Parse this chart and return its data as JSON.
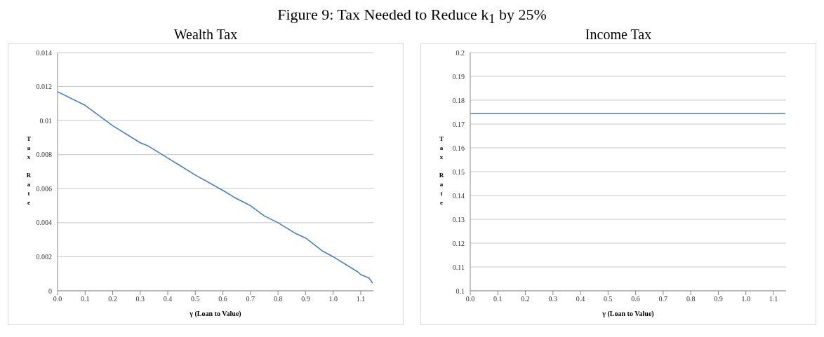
{
  "chart_data": [
    {
      "type": "line",
      "title": "Figure 9: Tax Needed to Reduce k$_{1}$ by 25%",
      "subtitle": "Wealth Tax",
      "xlabel": "γ (Loan to Value)",
      "ylabel": "Tax Rate",
      "grid": "y",
      "legend": false,
      "marker": "none",
      "line_style": "solid",
      "x": [
        0,
        0.1,
        0.2,
        0.3,
        0.33,
        0.4,
        0.5,
        0.6,
        0.64,
        0.7,
        0.75,
        0.8,
        0.86,
        0.9,
        0.96,
        1.0,
        1.09,
        1.1,
        1.13,
        1.143
      ],
      "series": [
        {
          "color": "#4a7ebb",
          "values": [
            0.0117,
            0.0109,
            0.0097,
            0.0087,
            0.0085,
            0.0078,
            0.0068,
            0.0059,
            0.0055,
            0.005,
            0.0044,
            0.004,
            0.0034,
            0.0031,
            0.00235,
            0.002,
            0.0011,
            0.00095,
            0.00075,
            0.00045
          ]
        }
      ],
      "xlim": [
        0,
        1.146
      ],
      "xticks": [
        {
          "value": 0,
          "label": "0.0"
        },
        {
          "value": 0.1,
          "label": "0.1"
        },
        {
          "value": 0.2,
          "label": "0.2"
        },
        {
          "value": 0.3,
          "label": "0.3"
        },
        {
          "value": 0.4,
          "label": "0.4"
        },
        {
          "value": 0.5,
          "label": "0.5"
        },
        {
          "value": 0.6,
          "label": "0.6"
        },
        {
          "value": 0.7,
          "label": "0.7"
        },
        {
          "value": 0.8,
          "label": "0.8"
        },
        {
          "value": 0.9,
          "label": "0.9"
        },
        {
          "value": 1,
          "label": "1.0"
        },
        {
          "value": 1.1,
          "label": "1.1"
        }
      ],
      "ylim": [
        0,
        0.014
      ],
      "yticks": [
        0,
        0.002,
        0.004,
        0.006,
        0.008,
        0.01,
        0.012,
        0.014
      ]
    },
    {
      "type": "line",
      "subtitle": "Income Tax",
      "xlabel": "γ (Loan to Value)",
      "ylabel": "Tax Rate",
      "grid": "y",
      "legend": false,
      "marker": "none",
      "line_style": "solid",
      "x": [
        0,
        1.143
      ],
      "series": [
        {
          "color": "#4a7ebb",
          "values": [
            0.1745,
            0.1745
          ]
        }
      ],
      "xlim": [
        0,
        1.146
      ],
      "xticks": [
        {
          "value": 0,
          "label": "0.0"
        },
        {
          "value": 0.1,
          "label": "0.1"
        },
        {
          "value": 0.2,
          "label": "0.2"
        },
        {
          "value": 0.3,
          "label": "0.3"
        },
        {
          "value": 0.4,
          "label": "0.4"
        },
        {
          "value": 0.5,
          "label": "0.5"
        },
        {
          "value": 0.6,
          "label": "0.6"
        },
        {
          "value": 0.7,
          "label": "0.7"
        },
        {
          "value": 0.8,
          "label": "0.8"
        },
        {
          "value": 0.9,
          "label": "0.9"
        },
        {
          "value": 1,
          "label": "1.0"
        },
        {
          "value": 1.1,
          "label": "1.1"
        }
      ],
      "ylim": [
        0.1,
        0.2
      ],
      "yticks": [
        0.1,
        0.11,
        0.12,
        0.13,
        0.14,
        0.15,
        0.16,
        0.17,
        0.18,
        0.19,
        0.2
      ]
    }
  ]
}
